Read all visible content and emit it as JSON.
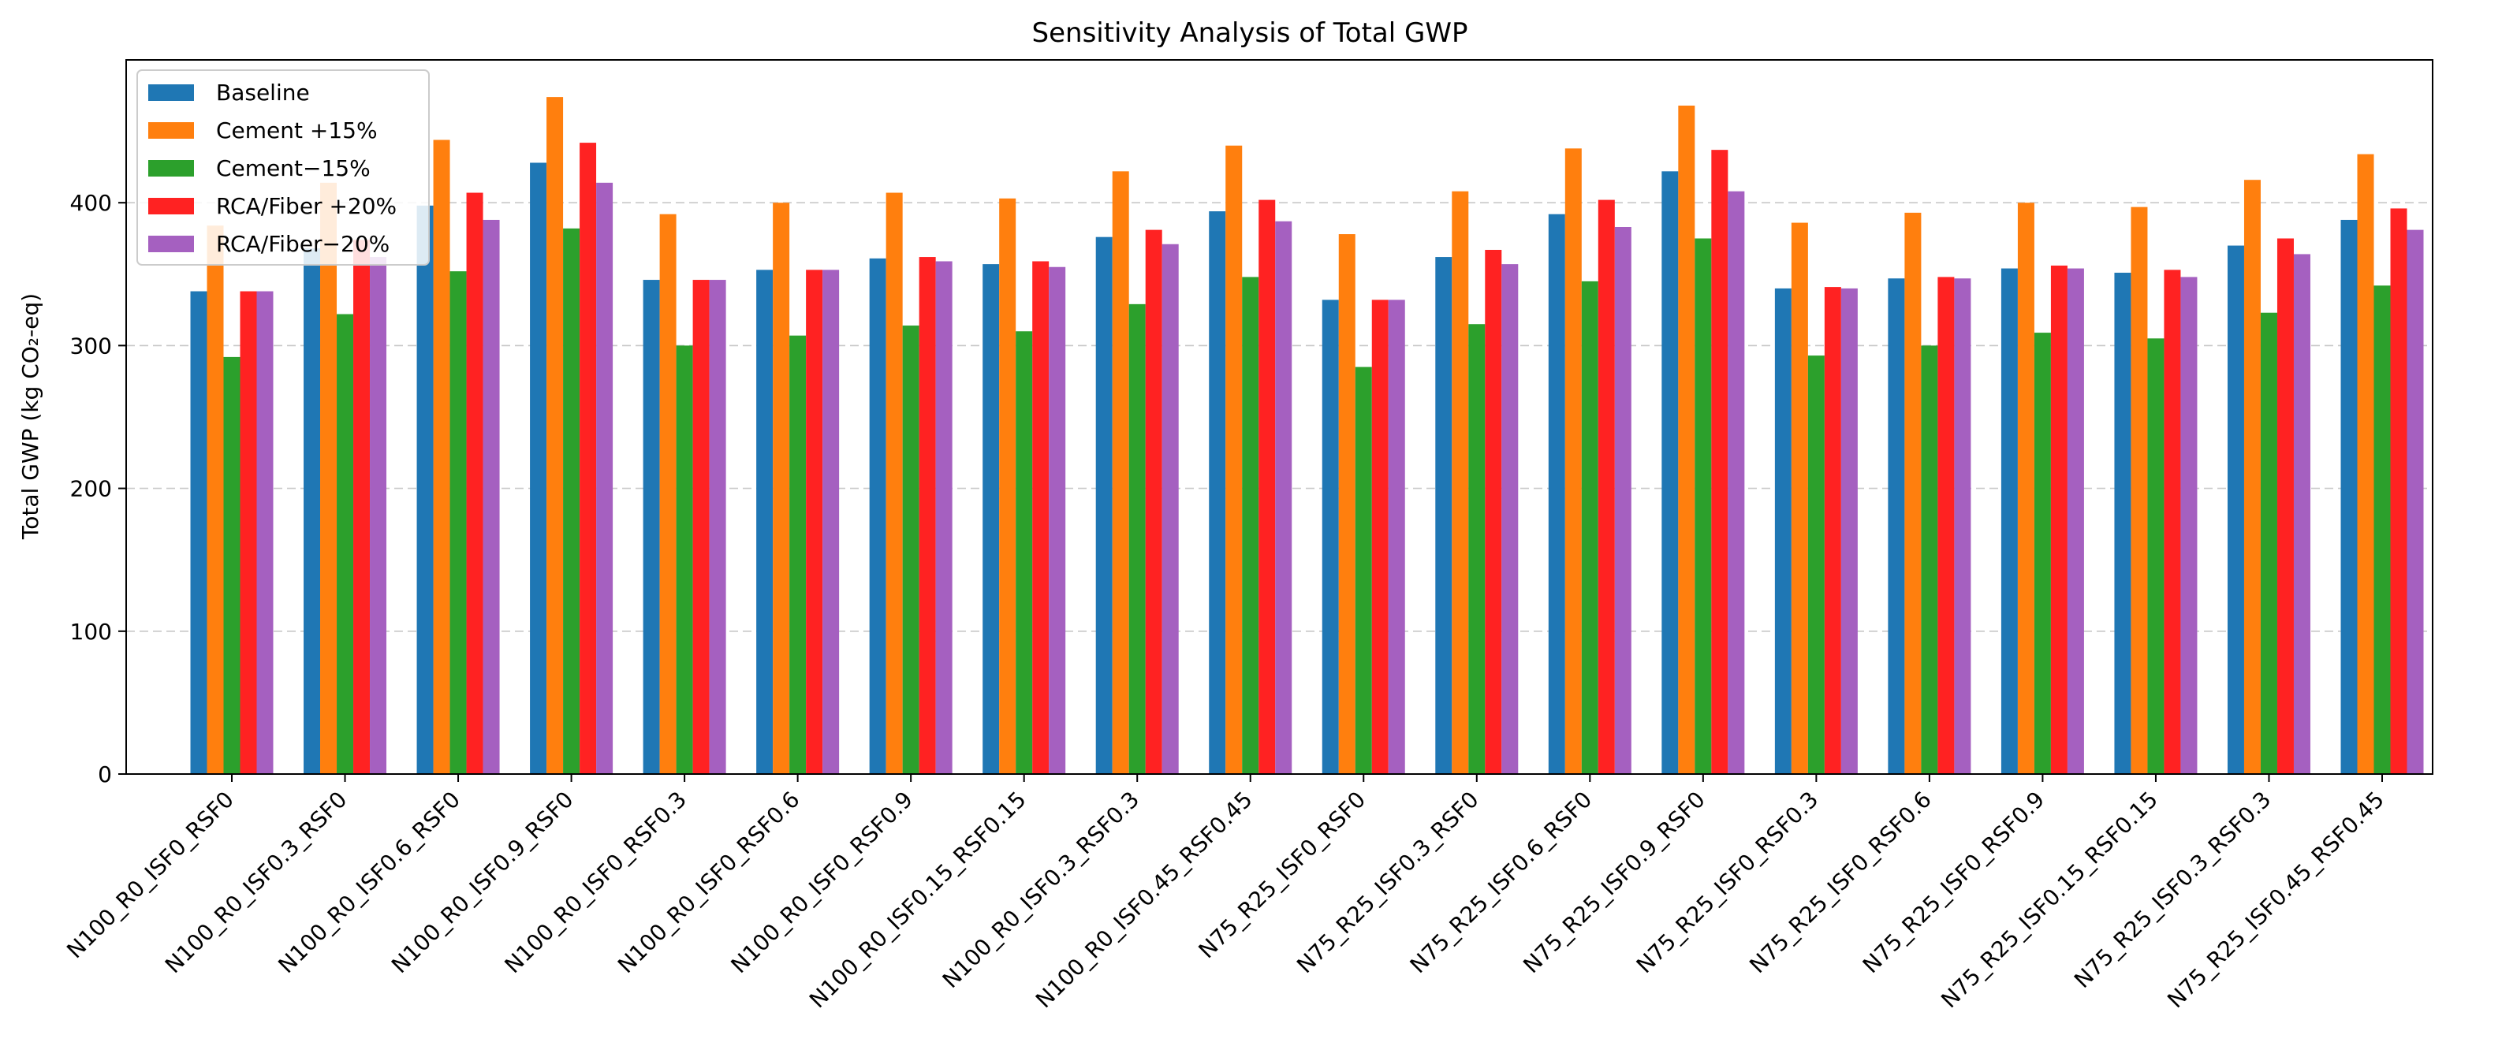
{
  "chart_data": {
    "type": "bar",
    "title": "Sensitivity Analysis of Total GWP",
    "xlabel": "",
    "ylabel": "Total GWP (kg CO₂-eq)",
    "ylim": [
      0,
      500
    ],
    "yticks": [
      0,
      100,
      200,
      300,
      400
    ],
    "ytick_labels": [
      "0",
      "100",
      "200",
      "300",
      "400"
    ],
    "grid": "y-dashed",
    "legend_position": "top-left",
    "categories": [
      "N100_R0_ISF0_RSF0",
      "N100_R0_ISF0.3_RSF0",
      "N100_R0_ISF0.6_RSF0",
      "N100_R0_ISF0.9_RSF0",
      "N100_R0_ISF0_RSF0.3",
      "N100_R0_ISF0_RSF0.6",
      "N100_R0_ISF0_RSF0.9",
      "N100_R0_ISF0.15_RSF0.15",
      "N100_R0_ISF0.3_RSF0.3",
      "N100_R0_ISF0.45_RSF0.45",
      "N75_R25_ISF0_RSF0",
      "N75_R25_ISF0.3_RSF0",
      "N75_R25_ISF0.6_RSF0",
      "N75_R25_ISF0.9_RSF0",
      "N75_R25_ISF0_RSF0.3",
      "N75_R25_ISF0_RSF0.6",
      "N75_R25_ISF0_RSF0.9",
      "N75_R25_ISF0.15_RSF0.15",
      "N75_R25_ISF0.3_RSF0.3",
      "N75_R25_ISF0.45_RSF0.45"
    ],
    "series": [
      {
        "name": "Baseline",
        "color": "#1f77b4",
        "values": [
          338,
          368,
          398,
          428,
          346,
          353,
          361,
          357,
          376,
          394,
          332,
          362,
          392,
          422,
          340,
          347,
          354,
          351,
          370,
          388
        ]
      },
      {
        "name": "Cement +15%",
        "color": "#ff7f0e",
        "values": [
          384,
          414,
          444,
          474,
          392,
          400,
          407,
          403,
          422,
          440,
          378,
          408,
          438,
          468,
          386,
          393,
          400,
          397,
          416,
          434
        ]
      },
      {
        "name": "Cement−15%",
        "color": "#2ca02c",
        "values": [
          292,
          322,
          352,
          382,
          300,
          307,
          314,
          310,
          329,
          348,
          285,
          315,
          345,
          375,
          293,
          300,
          309,
          305,
          323,
          342
        ]
      },
      {
        "name": "RCA/Fiber +20%",
        "color": "#ff2222",
        "values": [
          338,
          374,
          407,
          442,
          346,
          353,
          362,
          359,
          381,
          402,
          332,
          367,
          402,
          437,
          341,
          348,
          356,
          353,
          375,
          396
        ]
      },
      {
        "name": "RCA/Fiber−20%",
        "color": "#a560c0",
        "values": [
          338,
          362,
          388,
          414,
          346,
          353,
          359,
          355,
          371,
          387,
          332,
          357,
          383,
          408,
          340,
          347,
          354,
          348,
          364,
          381
        ]
      }
    ]
  }
}
